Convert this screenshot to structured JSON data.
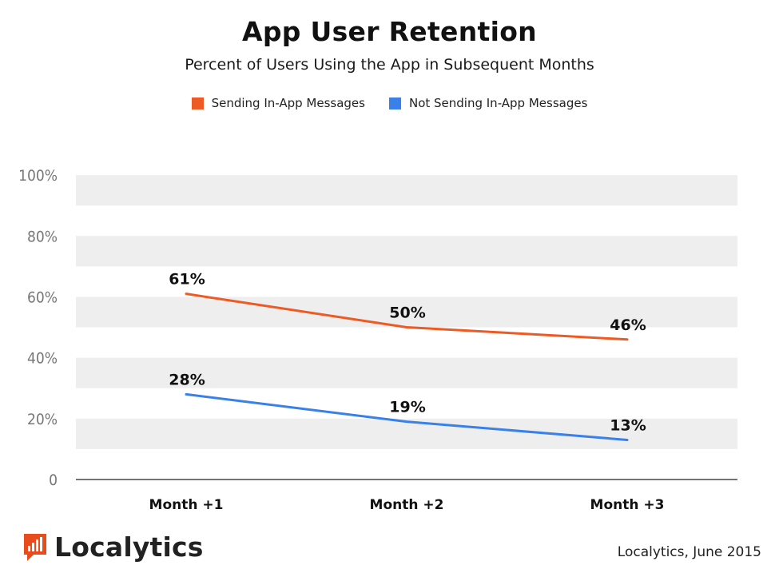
{
  "colors": {
    "series_orange": "#EE5A24",
    "series_blue": "#3A80E9",
    "band": "#EEEEEE",
    "brand": "#E84C1D"
  },
  "chart_data": {
    "type": "line",
    "title": "App User Retention",
    "subtitle": "Percent of Users Using the App in Subsequent Months",
    "categories": [
      "Month +1",
      "Month +2",
      "Month +3"
    ],
    "series": [
      {
        "name": "Sending In-App Messages",
        "values": [
          61,
          50,
          46
        ],
        "labels": [
          "61%",
          "50%",
          "46%"
        ],
        "color": "#EE5A24"
      },
      {
        "name": "Not Sending In-App Messages",
        "values": [
          28,
          19,
          13
        ],
        "labels": [
          "28%",
          "19%",
          "13%"
        ],
        "color": "#3A80E9"
      }
    ],
    "yticks": [
      0,
      20,
      40,
      60,
      80,
      100
    ],
    "ytick_labels": [
      "0",
      "20%",
      "40%",
      "60%",
      "80%",
      "100%"
    ],
    "ylim": [
      0,
      110
    ],
    "xlabel": "",
    "ylabel": "",
    "legend_position": "top-center"
  },
  "footer": {
    "brand_name": "Localytics",
    "logo_icon": "bar-chart-speech-bubble-icon",
    "source_text": "Localytics, June 2015"
  }
}
